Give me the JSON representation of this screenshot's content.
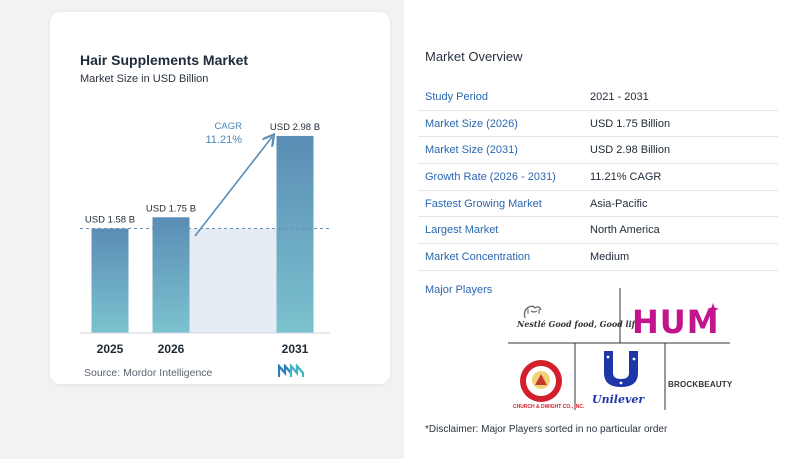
{
  "chart": {
    "title": "Hair Supplements Market",
    "subtitle": "Market Size in USD Billion",
    "source": "Source: Mordor Intelligence",
    "cagr_label": "CAGR",
    "cagr_value": "11.21%"
  },
  "chart_data": {
    "type": "bar",
    "categories": [
      "2025",
      "2026",
      "2031"
    ],
    "values": [
      1.58,
      1.75,
      2.98
    ],
    "data_labels": [
      "USD 1.58 B",
      "USD 1.75 B",
      "USD 2.98 B"
    ],
    "title": "Hair Supplements Market",
    "subtitle": "Market Size in USD Billion",
    "xlabel": "",
    "ylabel": "",
    "ylim": [
      0,
      3.1
    ],
    "grid": false,
    "annotations": [
      "CAGR",
      "11.21%"
    ],
    "colors": {
      "bar_top": "#5a8db5",
      "bar_bottom": "#7cc2cf",
      "area": "#e6ecf3",
      "arrow": "#5a8db5",
      "cagr_text": "#4a86b6"
    }
  },
  "overview": {
    "title": "Market Overview",
    "rows": [
      {
        "label": "Study Period",
        "value": "2021 - 2031"
      },
      {
        "label": "Market Size (2026)",
        "value": "USD 1.75 Billion"
      },
      {
        "label": "Market Size (2031)",
        "value": "USD 2.98 Billion"
      },
      {
        "label": "Growth Rate (2026 - 2031)",
        "value": "11.21% CAGR"
      },
      {
        "label": "Fastest Growing Market",
        "value": "Asia-Pacific"
      },
      {
        "label": "Largest Market",
        "value": "North America"
      },
      {
        "label": "Market Concentration",
        "value": "Medium"
      }
    ],
    "major_players_title": "Major Players",
    "players": {
      "nestle": "Nestlé Good food, Good life",
      "hum": "HUM",
      "church": "CHURCH & DWIGHT CO., INC.",
      "unilever": "Unilever",
      "brock": "BROCKBEAUTY"
    },
    "disclaimer": "*Disclaimer: Major Players sorted in no particular order"
  }
}
